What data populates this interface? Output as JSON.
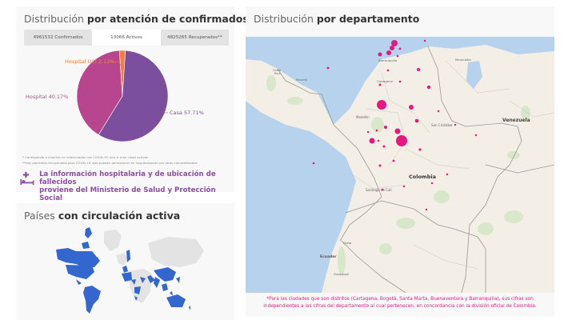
{
  "atencion_panel": {
    "title_light": "Distribución",
    "title_bold": "por atención de confirmados",
    "tabs": [
      {
        "label": "4961532 Confirmados",
        "active": false
      },
      {
        "label": "13066 Activos",
        "active": true
      },
      {
        "label": "4825265 Recuperados**",
        "active": false
      }
    ],
    "notes": [
      "* Corresponde a muertes no relacionadas con COVID-19, aún si eran casos activos",
      "**Hay pacientes recuperados para COVID-19, que pueden permanecer en hospitalización por otras comorbilidades"
    ],
    "info_line1": "La información hospitalaria y de ubicación de fallecidos",
    "info_line2": "proviene del Ministerio de Salud y Protección Social",
    "info_icon": "hospital-bed-icon",
    "accent_color": "#8b4ea0"
  },
  "chart_data": {
    "type": "pie",
    "title": "Distribución por atención de confirmados",
    "categories": [
      "Casa",
      "Hospital",
      "Hospital UCI"
    ],
    "values": [
      57.71,
      40.17,
      2.12
    ],
    "labels": [
      "Casa 57.71%",
      "Hospital 40.17%",
      "Hospital UCI 2.12%"
    ],
    "colors": [
      "#7b4f9d",
      "#b8468f",
      "#f07e3f"
    ],
    "unit": "%"
  },
  "paises_panel": {
    "title_light": "Países",
    "title_bold": "con circulación activa",
    "active_color": "#3466d0",
    "inactive_color": "#e3e3e3"
  },
  "depto_panel": {
    "title_light": "Distribución",
    "title_bold": "por departamento",
    "map_labels": {
      "colombia": "Colombia",
      "venezuela": "Venezuela",
      "panama": "Panamá",
      "medellin": "Medellín",
      "san_cristobal": "San Cristóbal",
      "santiago_de_cali": "Santiago de Cali",
      "ecuador": "Ecuador",
      "quito": "Quito",
      "guayaquil": "Guayaquil",
      "barranquilla": "Barranquilla",
      "cartagena": "Cartagena",
      "maracaibo": "Maracaibo",
      "bogota": "Bogotá",
      "costa_rica": "Costa Rica"
    },
    "marker_color": "#e8177f",
    "footnote_line1": "*Para las ciudades que son distritos (Cartagena, Bogotá, Santa Marta, Buenaventura y Barranquilla), sus cifras son",
    "footnote_line2": "independientes a las cifras del departamento al cual pertenecen, en concordancia con la división oficial de Colombia."
  }
}
